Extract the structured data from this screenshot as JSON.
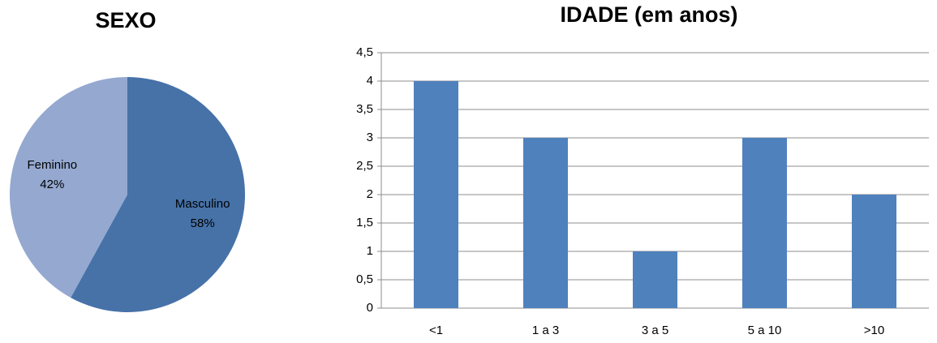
{
  "chart_data": [
    {
      "type": "pie",
      "title": "SEXO",
      "categories": [
        "Masculino",
        "Feminino"
      ],
      "values": [
        58,
        42
      ],
      "value_labels": [
        "58%",
        "42%"
      ],
      "colors": [
        "#4672a8",
        "#94a8d0"
      ]
    },
    {
      "type": "bar",
      "title": "IDADE (em anos)",
      "categories": [
        "<1",
        "1 a 3",
        "3 a 5",
        "5 a 10",
        ">10"
      ],
      "values": [
        4,
        3,
        1,
        3,
        2
      ],
      "color": "#4f81bd",
      "ylim": [
        0,
        4.5
      ],
      "yticks": [
        0,
        {
          "value": 0.5,
          "label": "0,5"
        },
        1,
        {
          "value": 1.5,
          "label": "1,5"
        },
        2,
        {
          "value": 2.5,
          "label": "2,5"
        },
        3,
        {
          "value": 3.5,
          "label": "3,5"
        },
        4,
        {
          "value": 4.5,
          "label": "4,5"
        }
      ],
      "grid": true
    }
  ]
}
